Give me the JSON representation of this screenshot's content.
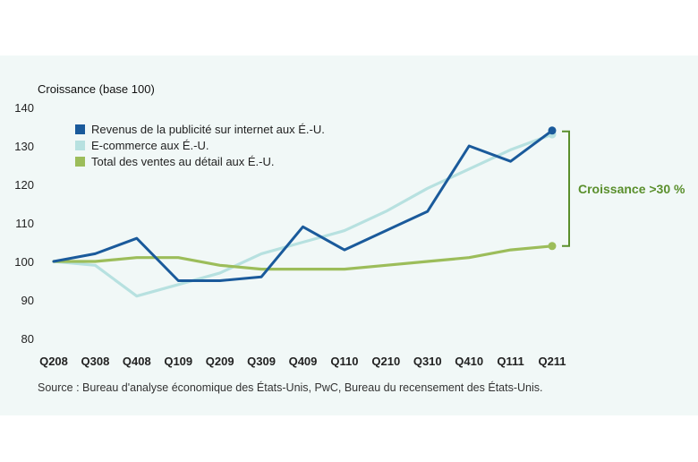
{
  "chart_data": {
    "type": "line",
    "ylabel": "Croissance (base 100)",
    "ylim": [
      80,
      140
    ],
    "yticks": [
      80,
      90,
      100,
      110,
      120,
      130,
      140
    ],
    "categories": [
      "Q208",
      "Q308",
      "Q408",
      "Q109",
      "Q209",
      "Q309",
      "Q409",
      "Q110",
      "Q210",
      "Q310",
      "Q410",
      "Q111",
      "Q211"
    ],
    "series": [
      {
        "name": "Revenus de la publicité sur internet aux É.-U.",
        "color": "#1a5a9b",
        "values": [
          100,
          102,
          106,
          95,
          95,
          96,
          109,
          103,
          108,
          113,
          130,
          126,
          134
        ],
        "end_marker": true
      },
      {
        "name": "E-commerce aux É.-U.",
        "color": "#b7e1e0",
        "values": [
          100,
          99,
          91,
          94,
          97,
          102,
          105,
          108,
          113,
          119,
          124,
          129,
          133
        ],
        "end_marker": true
      },
      {
        "name": "Total des ventes au détail aux É.-U.",
        "color": "#9cbd5a",
        "values": [
          100,
          100,
          101,
          101,
          99,
          98,
          98,
          98,
          99,
          100,
          101,
          103,
          104
        ],
        "end_marker": true
      }
    ],
    "annotation": {
      "text": "Croissance >30 %",
      "color": "#5a8f2c",
      "from": 104,
      "to": 134
    },
    "legend_position": "top-left",
    "grid": false,
    "source": "Source : Bureau d'analyse économique des États-Unis, PwC, Bureau du recensement des États-Unis."
  }
}
